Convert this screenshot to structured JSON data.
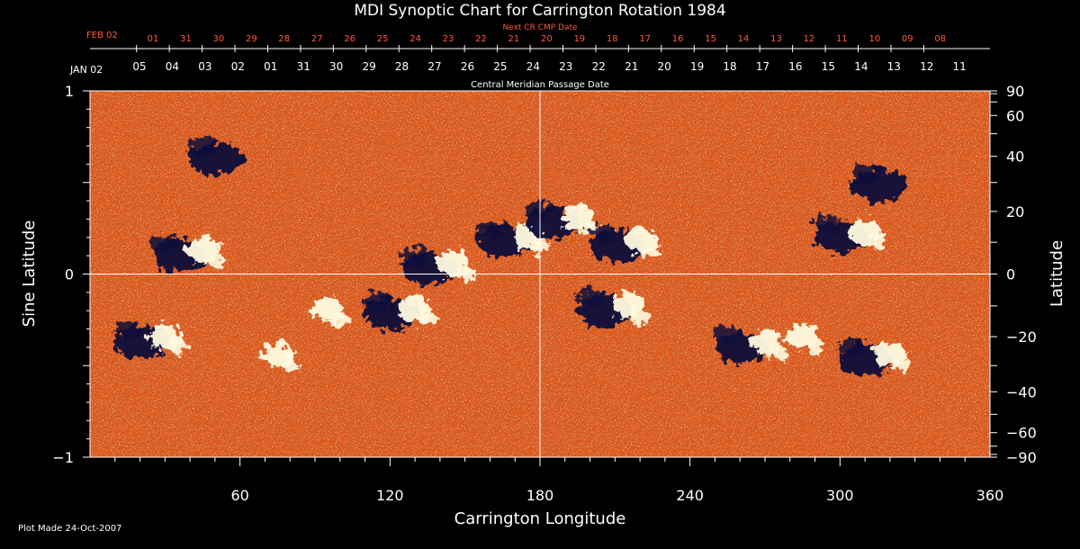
{
  "chart_data": {
    "type": "heatmap",
    "title": "MDI Synoptic Chart for Carrington Rotation 1984",
    "xlabel": "Carrington Longitude",
    "ylabel_left": "Sine Latitude",
    "ylabel_right": "Latitude",
    "xlim": [
      0,
      360
    ],
    "ylim": [
      -1,
      1
    ],
    "x_ticks": [
      "60",
      "120",
      "180",
      "240",
      "300",
      "360"
    ],
    "x_tick_values": [
      60,
      120,
      180,
      240,
      300,
      360
    ],
    "y_left_ticks": [
      "1",
      "0",
      "−1"
    ],
    "y_left_tick_values": [
      1,
      0,
      -1
    ],
    "y_right_ticks": [
      "90",
      "60",
      "40",
      "20",
      "0",
      "−20",
      "−40",
      "−60",
      "−90"
    ],
    "y_right_tick_values": [
      90,
      60,
      40,
      20,
      0,
      -20,
      -40,
      -60,
      -90
    ],
    "crosshair": {
      "x": 180,
      "y": 0
    },
    "top_axis": {
      "label": "Central Meridian Passage Date",
      "start_label": "JAN 02",
      "dates": [
        "05",
        "04",
        "03",
        "02",
        "01",
        "31",
        "30",
        "29",
        "28",
        "27",
        "26",
        "25",
        "24",
        "23",
        "22",
        "21",
        "20",
        "19",
        "18",
        "17",
        "16",
        "15",
        "14",
        "13",
        "12",
        "11"
      ]
    },
    "next_axis": {
      "label": "Next CR CMP Date",
      "start_label": "FEB 02",
      "dates": [
        "01",
        "31",
        "30",
        "29",
        "28",
        "27",
        "26",
        "25",
        "24",
        "23",
        "22",
        "21",
        "20",
        "19",
        "18",
        "17",
        "16",
        "15",
        "14",
        "13",
        "12",
        "11",
        "10",
        "09",
        "08"
      ]
    },
    "colors": {
      "background_field": "#e8521a",
      "positive": "#fffbe0",
      "negative": "#0b0a3a",
      "axis_red": "#ff5a3c"
    },
    "regions_note_free": [
      {
        "lon": 40,
        "slat": 0.12,
        "sign": "mixed"
      },
      {
        "lon": 55,
        "slat": 0.65,
        "sign": "negative"
      },
      {
        "lon": 25,
        "slat": -0.35,
        "sign": "mixed"
      },
      {
        "lon": 70,
        "slat": -0.45,
        "sign": "positive"
      },
      {
        "lon": 90,
        "slat": -0.2,
        "sign": "positive"
      },
      {
        "lon": 140,
        "slat": 0.05,
        "sign": "mixed"
      },
      {
        "lon": 125,
        "slat": -0.2,
        "sign": "mixed"
      },
      {
        "lon": 170,
        "slat": 0.2,
        "sign": "mixed"
      },
      {
        "lon": 190,
        "slat": 0.3,
        "sign": "mixed"
      },
      {
        "lon": 215,
        "slat": 0.17,
        "sign": "mixed"
      },
      {
        "lon": 210,
        "slat": -0.18,
        "sign": "mixed"
      },
      {
        "lon": 265,
        "slat": -0.38,
        "sign": "mixed"
      },
      {
        "lon": 280,
        "slat": -0.35,
        "sign": "positive"
      },
      {
        "lon": 305,
        "slat": 0.22,
        "sign": "mixed"
      },
      {
        "lon": 315,
        "slat": -0.45,
        "sign": "mixed"
      },
      {
        "lon": 320,
        "slat": 0.5,
        "sign": "negative"
      }
    ]
  },
  "footer": {
    "plot_made": "Plot Made 24-Oct-2007"
  }
}
